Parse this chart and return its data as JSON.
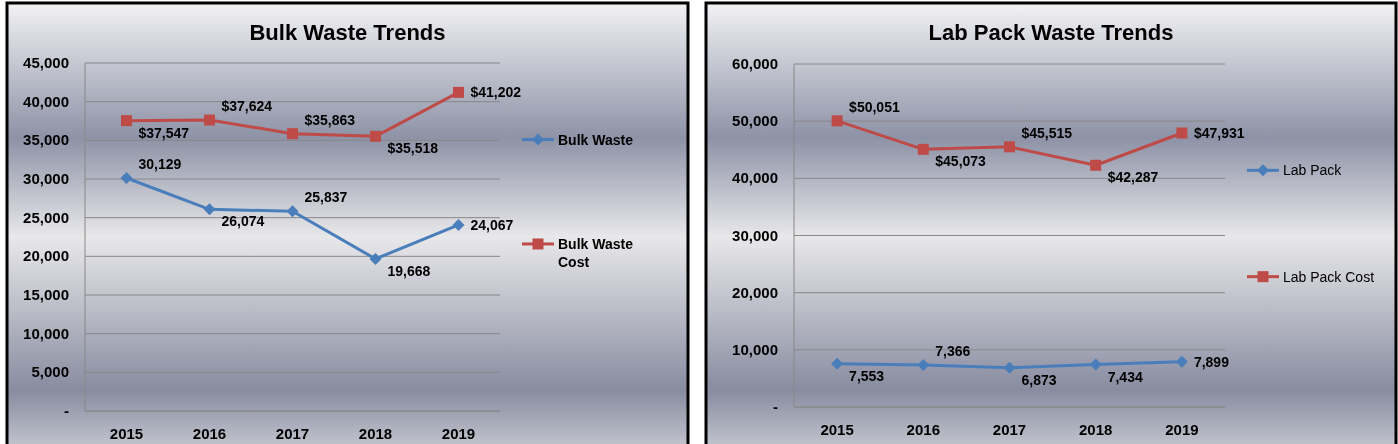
{
  "chart_data": [
    {
      "type": "line",
      "title": "Bulk Waste Trends",
      "categories": [
        "2015",
        "2016",
        "2017",
        "2018",
        "2019"
      ],
      "series": [
        {
          "name": "Bulk Waste",
          "color": "#4a7ebb",
          "marker": "diamond",
          "values": [
            30129,
            26074,
            25837,
            19668,
            24067
          ],
          "value_labels": [
            "30,129",
            "26,074",
            "25,837",
            "19,668",
            "24,067"
          ]
        },
        {
          "name": "Bulk Waste Cost",
          "color": "#be4b48",
          "marker": "square",
          "values": [
            37547,
            37624,
            35863,
            35518,
            41202
          ],
          "value_labels": [
            "$37,547",
            "$37,624",
            "$35,863",
            "$35,518",
            "$41,202"
          ]
        }
      ],
      "ylim": [
        0,
        45000
      ],
      "yticks": [
        {
          "value": 0,
          "label": "-"
        },
        {
          "value": 5000,
          "label": "5,000"
        },
        {
          "value": 10000,
          "label": "10,000"
        },
        {
          "value": 15000,
          "label": "15,000"
        },
        {
          "value": 20000,
          "label": "20,000"
        },
        {
          "value": 25000,
          "label": "25,000"
        },
        {
          "value": 30000,
          "label": "30,000"
        },
        {
          "value": 35000,
          "label": "35,000"
        },
        {
          "value": 40000,
          "label": "40,000"
        },
        {
          "value": 45000,
          "label": "45,000"
        }
      ],
      "grid": "y",
      "legend": "right"
    },
    {
      "type": "line",
      "title": "Lab Pack Waste Trends",
      "categories": [
        "2015",
        "2016",
        "2017",
        "2018",
        "2019"
      ],
      "series": [
        {
          "name": "Lab Pack",
          "color": "#4a7ebb",
          "marker": "diamond",
          "values": [
            7553,
            7366,
            6873,
            7434,
            7899
          ],
          "value_labels": [
            "7,553",
            "7,366",
            "6,873",
            "7,434",
            "7,899"
          ]
        },
        {
          "name": "Lab Pack Cost",
          "color": "#be4b48",
          "marker": "square",
          "values": [
            50051,
            45073,
            45515,
            42287,
            47931
          ],
          "value_labels": [
            "$50,051",
            "$45,073",
            "$45,515",
            "$42,287",
            "$47,931"
          ]
        }
      ],
      "ylim": [
        0,
        60000
      ],
      "yticks": [
        {
          "value": 0,
          "label": "-"
        },
        {
          "value": 10000,
          "label": "10,000"
        },
        {
          "value": 20000,
          "label": "20,000"
        },
        {
          "value": 30000,
          "label": "30,000"
        },
        {
          "value": 40000,
          "label": "40,000"
        },
        {
          "value": 50000,
          "label": "50,000"
        },
        {
          "value": 60000,
          "label": "60,000"
        }
      ],
      "grid": "y",
      "legend": "right"
    }
  ]
}
